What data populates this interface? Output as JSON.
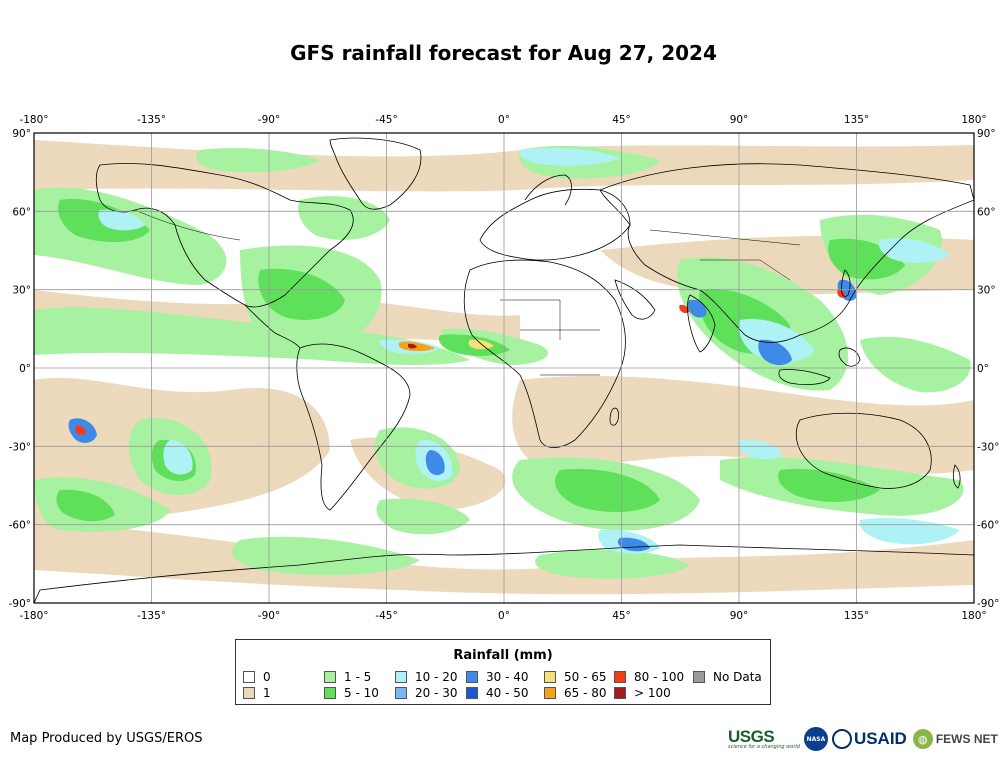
{
  "title": "GFS rainfall forecast for Aug 27, 2024",
  "map": {
    "lon_ticks": [
      "-180°",
      "-135°",
      "-90°",
      "-45°",
      "0°",
      "45°",
      "90°",
      "135°",
      "180°"
    ],
    "lat_ticks": [
      "90°",
      "60°",
      "30°",
      "0°",
      "-30°",
      "-60°",
      "-90°"
    ],
    "lon_values": [
      -180,
      -135,
      -90,
      -45,
      0,
      45,
      90,
      135,
      180
    ],
    "lat_values": [
      90,
      60,
      30,
      0,
      -30,
      -60,
      -90
    ],
    "grid": true,
    "colors": {
      "ocean_background": "#ffffff",
      "coastline": "#000000",
      "graticule": "#9a9a9a"
    }
  },
  "legend": {
    "title": "Rainfall (mm)",
    "items": [
      {
        "label": "0",
        "color": "#ffffff"
      },
      {
        "label": "1",
        "color": "#ecd8b8"
      },
      {
        "label": "1 - 5",
        "color": "#a6f2a0"
      },
      {
        "label": "5 - 10",
        "color": "#5fe05a"
      },
      {
        "label": "10 - 20",
        "color": "#aef2f5"
      },
      {
        "label": "20 - 30",
        "color": "#74b8f5"
      },
      {
        "label": "30 - 40",
        "color": "#3d8ae8"
      },
      {
        "label": "40 - 50",
        "color": "#1a5ad6"
      },
      {
        "label": "50 - 65",
        "color": "#f5e07a"
      },
      {
        "label": "65 - 80",
        "color": "#f5a21a"
      },
      {
        "label": "80 - 100",
        "color": "#f53c14"
      },
      {
        "label": "> 100",
        "color": "#a61c1c"
      },
      {
        "label": "No Data",
        "color": "#9a9a9a"
      }
    ]
  },
  "credit": "Map Produced by USGS/EROS",
  "logos": {
    "usgs": "USGS",
    "usgs_tagline": "science for a changing world",
    "nasa": "NASA",
    "usaid": "USAID",
    "fews": "FEWS NET"
  }
}
